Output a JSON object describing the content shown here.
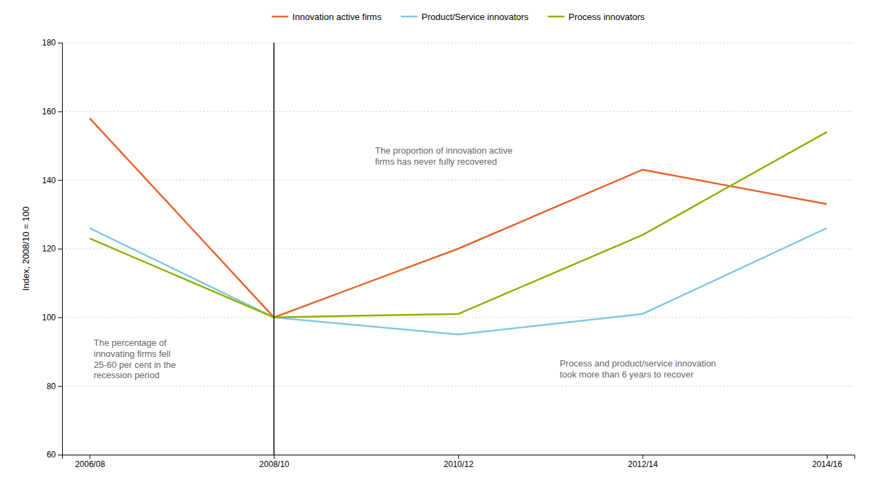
{
  "chart_data": {
    "type": "line",
    "y_label": "Index, 2008/10 = 100",
    "categories": [
      "2006/08",
      "2008/10",
      "2010/12",
      "2012/14",
      "2014/16"
    ],
    "series": [
      {
        "name": "Innovation active firms",
        "color": "#E8622A",
        "values": [
          158,
          100,
          120,
          143,
          133
        ]
      },
      {
        "name": "Product/Service innovators",
        "color": "#7EC8E3",
        "values": [
          126,
          100,
          95,
          101,
          126
        ]
      },
      {
        "name": "Process innovators",
        "color": "#8DB000",
        "values": [
          123,
          100,
          101,
          124,
          154
        ]
      }
    ],
    "ylim": [
      60,
      180
    ],
    "yticks": [
      60,
      80,
      100,
      120,
      140,
      160,
      180
    ],
    "grid": true,
    "vline": "2008/10",
    "annotations": [
      "The proportion of innovation active\nfirms has never fully recovered",
      "The percentage of\ninnovating firms fell\n25-60 per cent in the\nrecession period",
      "Process and product/service innovation\ntook more than 6 years to recover"
    ]
  }
}
